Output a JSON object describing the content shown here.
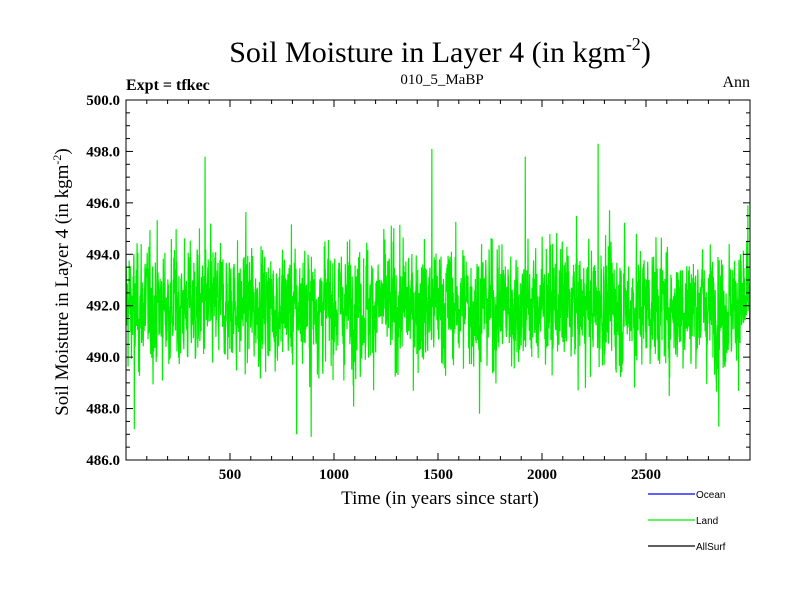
{
  "chart_data": {
    "type": "line",
    "title_main": "Soil Moisture in Layer 4 (in kgm",
    "title_sup": "-2",
    "title_close": ")",
    "subtitle_left": "Expt = tfkec",
    "subtitle_center": "010_5_MaBP",
    "subtitle_right": "Ann",
    "xlabel": "Time (in years since start)",
    "ylabel_main": "Soil Moisture in Layer 4 (in kgm",
    "ylabel_sup": "-2",
    "ylabel_close": ")",
    "xlim": [
      0,
      3000
    ],
    "ylim": [
      486.0,
      500.0
    ],
    "x_ticks": [
      500,
      1000,
      1500,
      2000,
      2500
    ],
    "x_tick_labels": [
      "500",
      "1000",
      "1500",
      "2000",
      "2500"
    ],
    "y_ticks": [
      486,
      488,
      490,
      492,
      494,
      496,
      498,
      500
    ],
    "y_tick_labels": [
      "486.0",
      "488.0",
      "490.0",
      "492.0",
      "494.0",
      "496.0",
      "498.0",
      "500.0"
    ],
    "legend_position": "bottom-right",
    "legend": [
      {
        "name": "Ocean",
        "color": "#0000ff"
      },
      {
        "name": "Land",
        "color": "#00ee00"
      },
      {
        "name": "AllSurf",
        "color": "#000000"
      }
    ],
    "series": [
      {
        "name": "Land",
        "color": "#00ee00",
        "x_start": 0,
        "x_end": 3000,
        "n_points": 3000,
        "mean": 492.0,
        "typical_range": [
          489.5,
          494.5
        ],
        "peaks": [
          [
            380,
            497.8
          ],
          [
            1470,
            498.1
          ],
          [
            1920,
            497.8
          ],
          [
            2270,
            498.3
          ],
          [
            2990,
            495.9
          ]
        ],
        "troughs": [
          [
            40,
            487.2
          ],
          [
            820,
            487.0
          ],
          [
            890,
            486.9
          ],
          [
            1700,
            487.8
          ],
          [
            2850,
            487.3
          ]
        ]
      }
    ]
  }
}
